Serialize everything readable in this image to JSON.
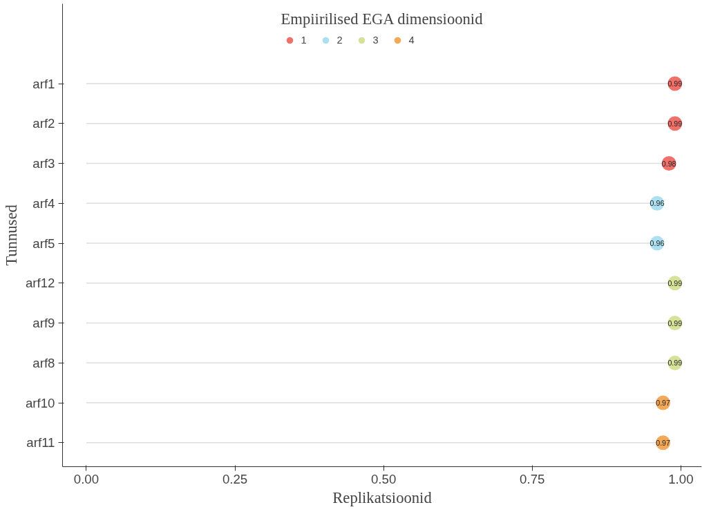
{
  "chart_data": {
    "type": "lollipop",
    "orientation": "horizontal",
    "xlabel": "Replikatsioonid",
    "ylabel": "Tunnused",
    "legend_title": "Empiirilised EGA dimensioonid",
    "legend": "top",
    "data_labels": true,
    "marker": "circle",
    "categories": [
      "arf1",
      "arf2",
      "arf3",
      "arf4",
      "arf5",
      "arf12",
      "arf9",
      "arf8",
      "arf10",
      "arf11"
    ],
    "xlim": [
      -0.04,
      1.035
    ],
    "xticks": [
      {
        "value": 0,
        "label": "0.00"
      },
      {
        "value": 0.25,
        "label": "0.25"
      },
      {
        "value": 0.5,
        "label": "0.50"
      },
      {
        "value": 0.75,
        "label": "0.75"
      },
      {
        "value": 1,
        "label": "1.00"
      }
    ],
    "series": [
      {
        "name": "1",
        "color": "#f0706a",
        "values": [
          0.99,
          0.99,
          0.98,
          null,
          null,
          null,
          null,
          null,
          null,
          null
        ]
      },
      {
        "name": "2",
        "color": "#acdff0",
        "values": [
          null,
          null,
          null,
          0.96,
          0.96,
          null,
          null,
          null,
          null,
          null
        ]
      },
      {
        "name": "3",
        "color": "#d6e29a",
        "values": [
          null,
          null,
          null,
          null,
          null,
          0.99,
          0.99,
          0.99,
          null,
          null
        ]
      },
      {
        "name": "4",
        "color": "#f4a958",
        "values": [
          null,
          null,
          null,
          null,
          null,
          null,
          null,
          null,
          0.97,
          0.97
        ]
      }
    ]
  }
}
